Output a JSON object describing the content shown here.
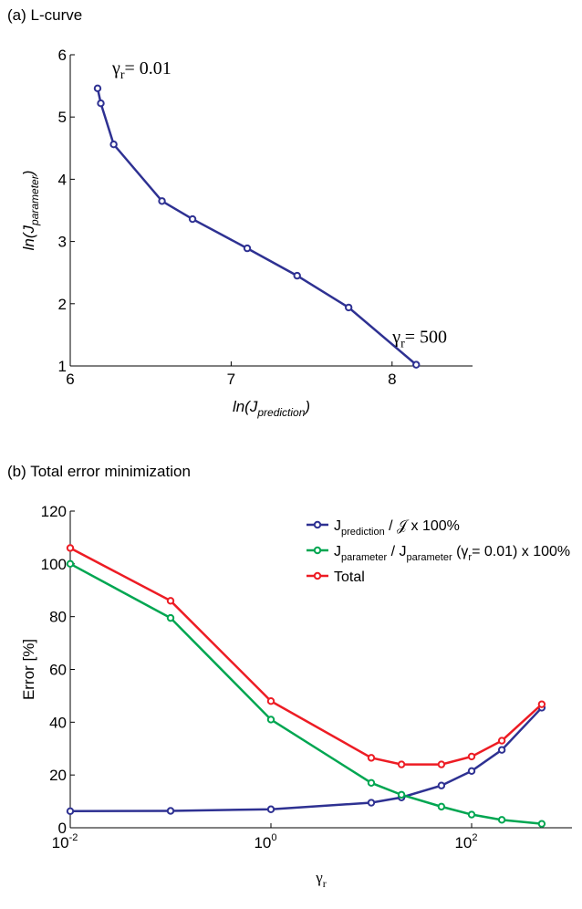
{
  "chart_data": [
    {
      "type": "line",
      "title": "(a) L-curve",
      "xlabel": [
        "ln(J",
        "prediction",
        ")"
      ],
      "ylabel": [
        "ln(J",
        "parameter",
        ")"
      ],
      "x": [
        6.17,
        6.19,
        6.27,
        6.57,
        6.76,
        7.1,
        7.41,
        7.73,
        8.15
      ],
      "series": [
        {
          "color": "#2e3192",
          "values": [
            5.46,
            5.22,
            4.56,
            3.65,
            3.36,
            2.89,
            2.45,
            1.94,
            1.02
          ]
        }
      ],
      "xlim": [
        6,
        8.5
      ],
      "ylim": [
        1,
        6
      ],
      "xticks": [
        6,
        7,
        8
      ],
      "yticks": [
        1,
        2,
        3,
        4,
        5,
        6
      ],
      "annotations": [
        [
          "γ",
          "r",
          "= 0.01"
        ],
        [
          "γ",
          "r",
          "= 500"
        ]
      ]
    },
    {
      "type": "line",
      "title": "(b) Total error minimization",
      "xlabel": [
        "γ",
        "r"
      ],
      "ylabel": [
        "Error [%]"
      ],
      "x": [
        0.01,
        0.1,
        1,
        10,
        20,
        50,
        100,
        200,
        500
      ],
      "xlog": true,
      "series": [
        {
          "name": [
            "J",
            "prediction",
            " / 𝒥 x 100%"
          ],
          "color": "#2e3192",
          "values": [
            6.3,
            6.4,
            7,
            9.5,
            11.5,
            16,
            21.5,
            29.5,
            45.5
          ]
        },
        {
          "name": [
            "J",
            "parameter",
            " / J",
            "parameter",
            " (γ",
            "r",
            "= 0.01) x 100%"
          ],
          "color": "#00a651",
          "values": [
            100,
            79.5,
            41,
            17,
            12.5,
            8,
            5,
            3,
            1.5
          ]
        },
        {
          "name": [
            "Total"
          ],
          "color": "#ed1c24",
          "values": [
            106,
            86,
            48,
            26.5,
            24,
            24,
            27,
            33,
            46.8
          ]
        }
      ],
      "xlim": [
        0.01,
        1000
      ],
      "ylim": [
        0,
        120
      ],
      "xticks": [
        {
          "value": 0.01,
          "label": "10",
          "exponent": "-2"
        },
        {
          "value": 1,
          "label": "10",
          "exponent": "0"
        },
        {
          "value": 100,
          "label": "10",
          "exponent": "2"
        }
      ],
      "yticks": [
        0,
        20,
        40,
        60,
        80,
        100,
        120
      ]
    }
  ]
}
